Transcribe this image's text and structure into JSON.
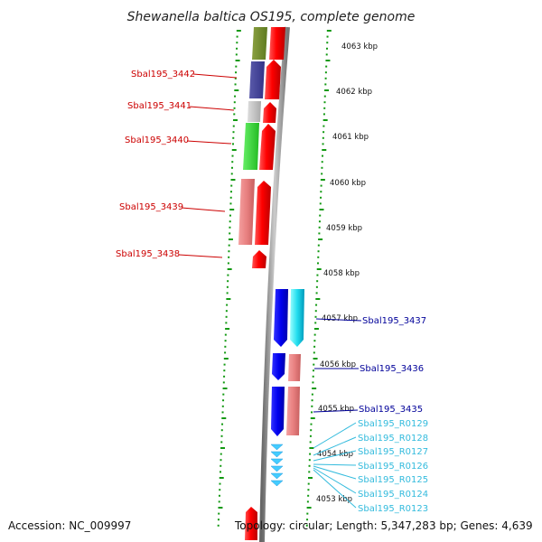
{
  "title": "Shewanella baltica OS195, complete genome",
  "footer": {
    "accession": "Accession: NC_009997",
    "summary": "Topology: circular; Length: 5,347,283 bp; Genes: 4,639"
  },
  "colors": {
    "label_red": "#cc0000",
    "label_blue": "#000099",
    "label_cyan": "#33bbdd",
    "tick_green": "#119911",
    "backbone_gray": "#999999"
  },
  "kbp_labels": [
    "4063 kbp",
    "4062 kbp",
    "4061 kbp",
    "4060 kbp",
    "4059 kbp",
    "4058 kbp",
    "4057 kbp",
    "4056 kbp",
    "4055 kbp",
    "4054 kbp",
    "4053 kbp"
  ],
  "left_genes": [
    "Sbal195_3442",
    "Sbal195_3441",
    "Sbal195_3440",
    "Sbal195_3439",
    "Sbal195_3438"
  ],
  "right_genes": [
    "Sbal195_3437",
    "Sbal195_3436",
    "Sbal195_3435"
  ],
  "rna_genes": [
    "Sbal195_R0129",
    "Sbal195_R0128",
    "Sbal195_R0127",
    "Sbal195_R0126",
    "Sbal195_R0125",
    "Sbal195_R0124",
    "Sbal195_R0123"
  ]
}
